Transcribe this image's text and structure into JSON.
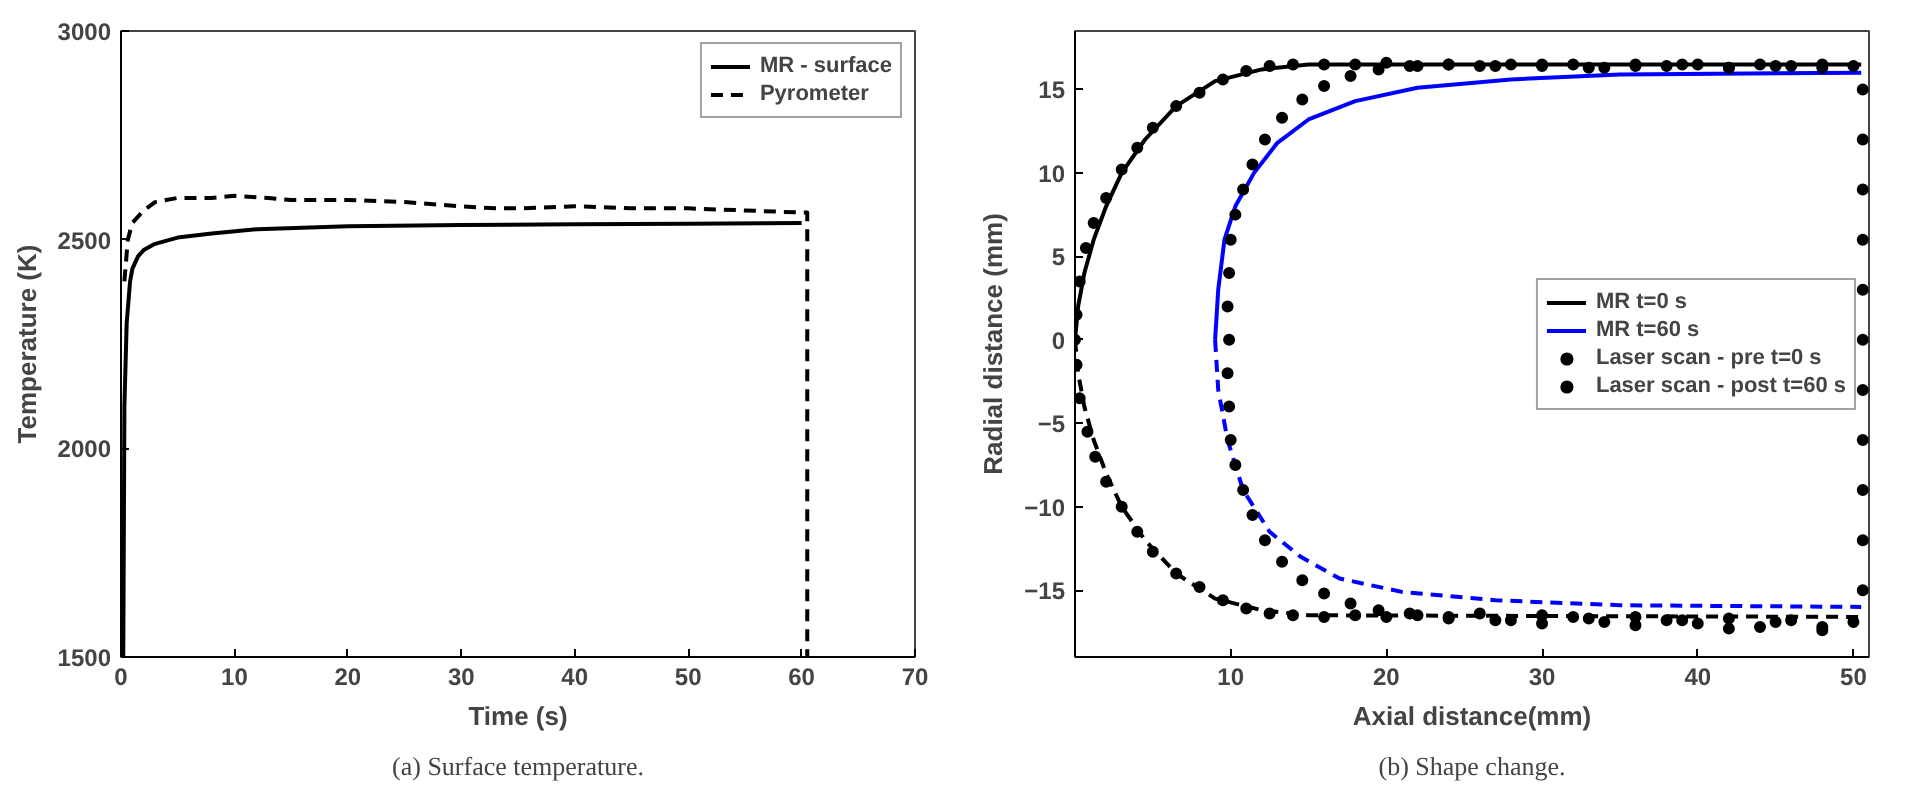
{
  "chart_data": [
    {
      "type": "line",
      "xlabel": "Time (s)",
      "ylabel": "Temperature (K)",
      "xlim": [
        0,
        70
      ],
      "ylim": [
        1500,
        3000
      ],
      "xticks": [
        0,
        10,
        20,
        30,
        40,
        50,
        60,
        70
      ],
      "yticks": [
        1500,
        2000,
        2500,
        3000
      ],
      "grid": false,
      "legend": "top right",
      "annotations": [
        "(a) Surface temperature."
      ],
      "series": [
        {
          "name": "MR - surface",
          "color": "#000000",
          "line_style": "solid",
          "x": [
            0.2,
            0.3,
            0.5,
            0.8,
            1,
            1.5,
            2,
            3,
            5,
            8,
            12,
            20,
            30,
            40,
            50,
            60
          ],
          "values": [
            1500,
            2100,
            2300,
            2400,
            2430,
            2460,
            2475,
            2490,
            2505,
            2515,
            2525,
            2532,
            2535,
            2537,
            2538,
            2540
          ]
        },
        {
          "name": "Pyrometer",
          "color": "#000000",
          "line_style": "dashed",
          "x": [
            0.3,
            0.6,
            1,
            2,
            3,
            5,
            8,
            10,
            13,
            15,
            20,
            25,
            30,
            33,
            35,
            40,
            45,
            50,
            55,
            60,
            60.5,
            60.5
          ],
          "values": [
            2400,
            2500,
            2540,
            2570,
            2590,
            2600,
            2600,
            2605,
            2600,
            2595,
            2595,
            2590,
            2580,
            2575,
            2575,
            2580,
            2575,
            2575,
            2570,
            2565,
            2565,
            1500
          ]
        }
      ]
    },
    {
      "type": "line",
      "xlabel": "Axial distance(mm)",
      "ylabel": "Radial distance (mm)",
      "xlim": [
        0,
        51
      ],
      "ylim": [
        -19,
        18.5
      ],
      "xticks": [
        10,
        20,
        30,
        40,
        50
      ],
      "yticks": [
        -15,
        -10,
        -5,
        0,
        5,
        10,
        15
      ],
      "grid": false,
      "legend": "right",
      "annotations": [
        "(b) Shape change."
      ],
      "series": [
        {
          "name": "MR t=0 s",
          "color": "#000000",
          "line_style": "solid",
          "x": [
            0,
            0.2,
            0.6,
            1.2,
            2,
            3,
            4.5,
            6.5,
            9,
            12,
            15,
            50.5
          ],
          "values": [
            0,
            2,
            4,
            6,
            8,
            10,
            12,
            14,
            15.5,
            16.2,
            16.5,
            16.5
          ]
        },
        {
          "color": "#000000",
          "line_style": "dashed",
          "x": [
            0,
            0.2,
            0.6,
            1.2,
            2,
            3,
            4.5,
            6.5,
            9,
            12,
            15,
            50.5
          ],
          "values": [
            0,
            -2,
            -4,
            -6,
            -8,
            -10,
            -12,
            -14,
            -15.5,
            -16.2,
            -16.5,
            -16.6
          ]
        },
        {
          "name": "MR t=60 s",
          "color": "#0000ff",
          "line_style": "solid",
          "x": [
            9,
            9.2,
            9.6,
            10.3,
            11.5,
            13,
            15,
            18,
            22,
            28,
            35,
            50.5
          ],
          "values": [
            0,
            3,
            6,
            8,
            10,
            11.8,
            13.2,
            14.3,
            15.1,
            15.6,
            15.9,
            16
          ]
        },
        {
          "color": "#0000ff",
          "line_style": "dashed",
          "x": [
            9,
            9.2,
            9.8,
            10.8,
            12.5,
            14.5,
            17,
            21,
            27,
            35,
            50.5
          ],
          "values": [
            0,
            -3,
            -6,
            -9,
            -11.5,
            -13,
            -14.3,
            -15.1,
            -15.6,
            -15.9,
            -16
          ]
        },
        {
          "name": "Laser scan - pre t=0 s",
          "type": "scatter",
          "marker": "circle",
          "color": "#000000",
          "x": [
            0,
            0.1,
            0.3,
            0.7,
            1.2,
            2,
            3,
            4,
            5,
            6.5,
            8,
            9.5,
            11,
            12.5,
            14,
            16,
            18,
            20,
            22,
            24,
            26,
            28,
            30,
            32,
            34,
            36,
            38,
            40,
            42,
            44,
            46,
            48,
            50,
            0.1,
            0.3,
            0.8,
            1.3,
            2,
            3,
            4,
            5,
            6.5,
            8,
            9.5,
            11,
            12.5,
            14,
            16,
            18,
            20,
            22,
            24,
            26,
            28,
            30,
            32,
            34,
            36,
            38,
            40,
            42,
            44,
            46,
            48,
            50
          ],
          "values": [
            0,
            1.5,
            3.5,
            5.5,
            7,
            8.5,
            10.2,
            11.5,
            12.7,
            14,
            14.8,
            15.6,
            16.1,
            16.4,
            16.5,
            16.5,
            16.5,
            16.6,
            16.4,
            16.5,
            16.4,
            16.5,
            16.4,
            16.5,
            16.3,
            16.5,
            16.4,
            16.5,
            16.3,
            16.5,
            16.4,
            16.3,
            16.4,
            -1.5,
            -3.5,
            -5.5,
            -7,
            -8.5,
            -10,
            -11.5,
            -12.7,
            -14,
            -14.8,
            -15.6,
            -16.1,
            -16.4,
            -16.5,
            -16.6,
            -16.5,
            -16.6,
            -16.5,
            -16.7,
            -16.4,
            -16.8,
            -16.5,
            -16.6,
            -16.9,
            -16.6,
            -16.8,
            -17,
            -16.7,
            -17.2,
            -16.8,
            -17.2,
            -16.9
          ]
        },
        {
          "name": "Laser scan - post t=60 s",
          "type": "scatter",
          "marker": "circle",
          "color": "#000000",
          "x": [
            9.9,
            9.8,
            9.9,
            10,
            10.3,
            10.8,
            11.4,
            12.2,
            13.3,
            14.6,
            16,
            17.7,
            19.5,
            21.5,
            24,
            27,
            30,
            33,
            36,
            39,
            42,
            45,
            48,
            9.8,
            9.9,
            10,
            10.3,
            10.8,
            11.4,
            12.2,
            13.3,
            14.6,
            16,
            17.7,
            19.5,
            21.5,
            24,
            27,
            30,
            33,
            36,
            39,
            42,
            45,
            48,
            50.6,
            50.6,
            50.6,
            50.6,
            50.6,
            50.6,
            50.6,
            50.6,
            50.6,
            50.6,
            50.6
          ],
          "values": [
            0,
            2,
            4,
            6,
            7.5,
            9,
            10.5,
            12,
            13.3,
            14.4,
            15.2,
            15.8,
            16.2,
            16.4,
            16.5,
            16.4,
            16.5,
            16.3,
            16.4,
            16.5,
            16.3,
            16.4,
            16.5,
            -2,
            -4,
            -6,
            -7.5,
            -9,
            -10.5,
            -12,
            -13.3,
            -14.4,
            -15.2,
            -15.8,
            -16.2,
            -16.4,
            -16.6,
            -16.8,
            -17,
            -16.7,
            -17.1,
            -16.8,
            -17.3,
            -16.9,
            -17.4,
            15,
            12,
            9,
            6,
            3,
            0,
            -3,
            -6,
            -9,
            -12,
            -15
          ]
        }
      ]
    }
  ]
}
